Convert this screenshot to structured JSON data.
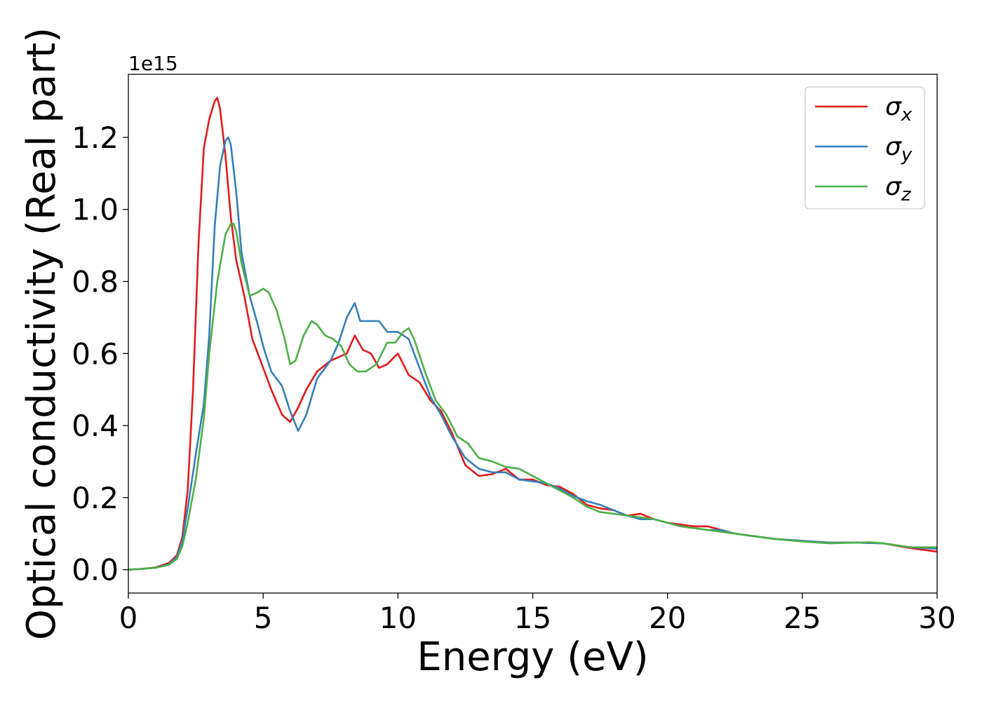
{
  "chart_data": {
    "type": "line",
    "xlabel": "Energy (eV)",
    "ylabel": "Optical conductivity (Real part)",
    "y_offset_label": "1e15",
    "xlim": [
      0,
      30
    ],
    "ylim": [
      -0.065,
      1.375
    ],
    "x_ticks": [
      0,
      5,
      10,
      15,
      20,
      25,
      30
    ],
    "y_ticks": [
      0.0,
      0.2,
      0.4,
      0.6,
      0.8,
      1.0,
      1.2
    ],
    "y_tick_labels": [
      "0.0",
      "0.2",
      "0.4",
      "0.6",
      "0.8",
      "1.0",
      "1.2"
    ],
    "grid": false,
    "legend_position": "top-right",
    "series": [
      {
        "name": "σx",
        "symbol": "σ",
        "subscript": "x",
        "color": "#e41a1c",
        "x": [
          0,
          0.5,
          1.0,
          1.5,
          1.8,
          2.0,
          2.2,
          2.4,
          2.6,
          2.8,
          3.0,
          3.2,
          3.3,
          3.4,
          3.6,
          3.8,
          4.0,
          4.3,
          4.6,
          5.0,
          5.3,
          5.7,
          6.0,
          6.3,
          6.6,
          7.0,
          7.5,
          7.8,
          8.1,
          8.4,
          8.7,
          9.0,
          9.3,
          9.6,
          10.0,
          10.4,
          10.8,
          11.2,
          11.6,
          12.0,
          12.5,
          13.0,
          13.5,
          14.0,
          14.5,
          15.0,
          15.5,
          16.0,
          16.5,
          17.0,
          17.5,
          18.0,
          18.5,
          19.0,
          19.5,
          20.0,
          20.5,
          21.0,
          21.5,
          22.0,
          22.5,
          23.0,
          24.0,
          25.0,
          26.0,
          27.0,
          28.0,
          29.0,
          30.0
        ],
        "y": [
          0.0,
          0.002,
          0.006,
          0.018,
          0.04,
          0.09,
          0.22,
          0.5,
          0.9,
          1.17,
          1.25,
          1.3,
          1.31,
          1.28,
          1.15,
          0.98,
          0.86,
          0.76,
          0.64,
          0.56,
          0.5,
          0.43,
          0.41,
          0.45,
          0.5,
          0.55,
          0.58,
          0.59,
          0.6,
          0.65,
          0.61,
          0.6,
          0.56,
          0.57,
          0.6,
          0.54,
          0.52,
          0.47,
          0.44,
          0.38,
          0.29,
          0.26,
          0.265,
          0.28,
          0.25,
          0.25,
          0.235,
          0.23,
          0.21,
          0.18,
          0.17,
          0.165,
          0.15,
          0.155,
          0.14,
          0.13,
          0.125,
          0.12,
          0.12,
          0.11,
          0.1,
          0.095,
          0.085,
          0.08,
          0.075,
          0.075,
          0.073,
          0.06,
          0.05
        ]
      },
      {
        "name": "σy",
        "symbol": "σ",
        "subscript": "y",
        "color": "#377eb8",
        "x": [
          0,
          0.5,
          1.0,
          1.5,
          1.8,
          2.0,
          2.2,
          2.5,
          2.8,
          3.0,
          3.2,
          3.4,
          3.6,
          3.7,
          3.8,
          4.0,
          4.2,
          4.5,
          4.8,
          5.0,
          5.3,
          5.7,
          6.0,
          6.3,
          6.6,
          7.0,
          7.5,
          7.8,
          8.1,
          8.4,
          8.6,
          9.0,
          9.3,
          9.6,
          10.0,
          10.4,
          10.8,
          11.2,
          11.6,
          12.0,
          12.5,
          13.0,
          13.5,
          14.0,
          14.5,
          15.0,
          15.5,
          16.0,
          16.5,
          17.0,
          17.5,
          18.0,
          18.5,
          19.0,
          19.5,
          20.0,
          20.5,
          21.0,
          21.5,
          22.0,
          22.5,
          23.0,
          24.0,
          25.0,
          26.0,
          27.0,
          28.0,
          29.0,
          30.0
        ],
        "y": [
          0.0,
          0.002,
          0.005,
          0.015,
          0.035,
          0.08,
          0.17,
          0.32,
          0.46,
          0.65,
          0.95,
          1.12,
          1.19,
          1.2,
          1.18,
          1.05,
          0.88,
          0.76,
          0.68,
          0.62,
          0.55,
          0.51,
          0.44,
          0.385,
          0.43,
          0.53,
          0.58,
          0.63,
          0.7,
          0.74,
          0.69,
          0.69,
          0.69,
          0.66,
          0.66,
          0.64,
          0.56,
          0.48,
          0.43,
          0.37,
          0.31,
          0.28,
          0.27,
          0.27,
          0.25,
          0.245,
          0.24,
          0.225,
          0.205,
          0.19,
          0.18,
          0.165,
          0.15,
          0.14,
          0.14,
          0.13,
          0.12,
          0.115,
          0.11,
          0.11,
          0.1,
          0.095,
          0.085,
          0.08,
          0.075,
          0.075,
          0.073,
          0.062,
          0.058
        ]
      },
      {
        "name": "σz",
        "symbol": "σ",
        "subscript": "z",
        "color": "#4daf4a",
        "x": [
          0,
          0.5,
          1.0,
          1.5,
          1.8,
          2.0,
          2.2,
          2.5,
          2.8,
          3.0,
          3.3,
          3.6,
          3.8,
          3.9,
          4.0,
          4.2,
          4.5,
          4.8,
          5.0,
          5.2,
          5.5,
          5.8,
          6.0,
          6.2,
          6.5,
          6.8,
          7.0,
          7.3,
          7.6,
          7.9,
          8.2,
          8.5,
          8.8,
          9.2,
          9.6,
          9.9,
          10.2,
          10.4,
          10.6,
          11.0,
          11.4,
          11.8,
          12.2,
          12.6,
          13.0,
          13.5,
          14.0,
          14.5,
          15.0,
          15.5,
          16.0,
          16.5,
          17.0,
          17.5,
          18.0,
          18.5,
          19.0,
          19.5,
          20.0,
          20.5,
          21.0,
          21.5,
          22.0,
          22.5,
          23.0,
          24.0,
          25.0,
          26.0,
          27.0,
          27.5,
          28.0,
          29.0,
          30.0
        ],
        "y": [
          0.0,
          0.002,
          0.005,
          0.013,
          0.03,
          0.065,
          0.13,
          0.25,
          0.42,
          0.6,
          0.8,
          0.93,
          0.96,
          0.96,
          0.94,
          0.85,
          0.76,
          0.77,
          0.78,
          0.77,
          0.72,
          0.64,
          0.57,
          0.58,
          0.65,
          0.69,
          0.68,
          0.65,
          0.64,
          0.62,
          0.57,
          0.55,
          0.55,
          0.57,
          0.63,
          0.63,
          0.66,
          0.67,
          0.64,
          0.55,
          0.47,
          0.43,
          0.37,
          0.35,
          0.31,
          0.3,
          0.285,
          0.28,
          0.26,
          0.24,
          0.22,
          0.2,
          0.175,
          0.16,
          0.155,
          0.15,
          0.145,
          0.14,
          0.13,
          0.12,
          0.115,
          0.11,
          0.105,
          0.1,
          0.095,
          0.085,
          0.078,
          0.073,
          0.075,
          0.076,
          0.073,
          0.062,
          0.062
        ]
      }
    ]
  }
}
